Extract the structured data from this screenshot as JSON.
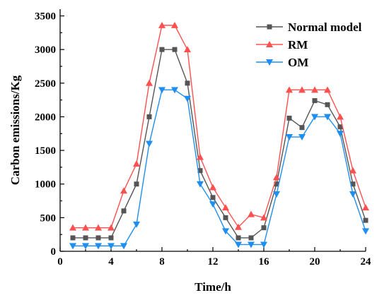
{
  "chart_data": {
    "type": "line",
    "title": "",
    "xlabel": "Time/h",
    "ylabel": "Carbon emissions/Kg",
    "xlim": [
      0,
      24
    ],
    "ylim": [
      0,
      3600
    ],
    "xticks": [
      0,
      4,
      8,
      12,
      16,
      20,
      24
    ],
    "yticks": [
      0,
      500,
      1000,
      1500,
      2000,
      2500,
      3000,
      3500
    ],
    "grid": false,
    "legend": "top-right",
    "x": [
      1,
      2,
      3,
      4,
      5,
      6,
      7,
      8,
      9,
      10,
      11,
      12,
      13,
      14,
      15,
      16,
      17,
      18,
      19,
      20,
      21,
      22,
      23,
      24
    ],
    "series": [
      {
        "name": "Normal model",
        "color": "#555555",
        "marker": "square",
        "values": [
          200,
          200,
          200,
          200,
          600,
          1000,
          2000,
          3000,
          3000,
          2500,
          1200,
          800,
          500,
          200,
          200,
          350,
          1000,
          1980,
          1840,
          2240,
          2180,
          1850,
          1000,
          460
        ]
      },
      {
        "name": "RM",
        "color": "#ff5050",
        "marker": "triangle-up",
        "values": [
          350,
          350,
          350,
          350,
          900,
          1300,
          2500,
          3360,
          3360,
          3000,
          1400,
          950,
          650,
          360,
          550,
          500,
          1100,
          2400,
          2400,
          2400,
          2400,
          2000,
          1200,
          650
        ]
      },
      {
        "name": "OM",
        "color": "#1e8ff0",
        "marker": "triangle-down",
        "values": [
          80,
          80,
          80,
          80,
          80,
          400,
          1600,
          2400,
          2400,
          2270,
          1000,
          700,
          300,
          100,
          100,
          100,
          850,
          1700,
          1700,
          2000,
          2000,
          1750,
          850,
          300
        ]
      }
    ]
  }
}
